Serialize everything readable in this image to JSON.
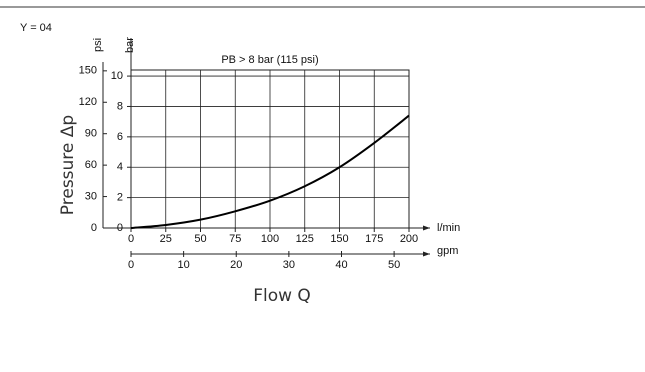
{
  "chart_data": {
    "type": "line",
    "label": "Y = 04",
    "annotation": "PB > 8 bar (115 psi)",
    "xlabel": "Flow Q",
    "ylabel": "Pressure Δp",
    "x_unit": "l/min",
    "x2_unit": "gpm",
    "y_unit": "bar",
    "y2_unit": "psi",
    "xlim": [
      0,
      200
    ],
    "xticks": [
      0,
      25,
      50,
      75,
      100,
      125,
      150,
      175,
      200
    ],
    "x2lim": [
      0,
      52.83
    ],
    "x2ticks": [
      0,
      10,
      20,
      30,
      40,
      50
    ],
    "ylim": [
      0,
      10.4
    ],
    "yticks": [
      0,
      2,
      4,
      6,
      8,
      10
    ],
    "y2lim": [
      0,
      150.8
    ],
    "y2ticks": [
      0,
      30,
      60,
      90,
      120,
      150
    ],
    "grid": true,
    "series": [
      {
        "color": "#000000",
        "x": [
          0,
          25,
          50,
          75,
          100,
          125,
          150,
          175,
          200
        ],
        "values": [
          0,
          0.2,
          0.55,
          1.1,
          1.8,
          2.75,
          4.0,
          5.6,
          7.4
        ]
      }
    ]
  }
}
